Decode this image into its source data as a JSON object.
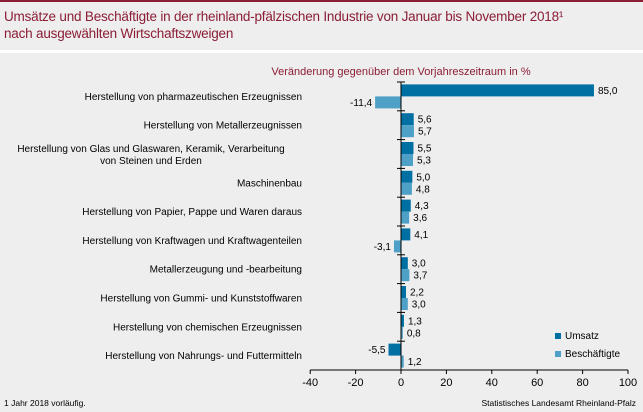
{
  "header": {
    "title_line1": "Umsätze und Beschäftigte in der rheinland-pfälzischen Industrie von Januar bis November 2018¹",
    "title_line2": "nach ausgewählten Wirtschaftszweigen"
  },
  "footer": {
    "note": "1 Jahr 2018 vorläufig.",
    "source": "Statistisches Landesamt Rheinland-Pfalz"
  },
  "colors": {
    "brand": "#8b1d36",
    "umsatz": "#0070a3",
    "beschaeftigte": "#4ea0c6",
    "background": "#eeeeee"
  },
  "chart_data": {
    "type": "bar",
    "orientation": "horizontal",
    "title": "Veränderung gegenüber dem Vorjahreszeitraum in %",
    "categories": [
      [
        "Herstellung von pharmazeutischen Erzeugnissen"
      ],
      [
        "Herstellung von Metallerzeugnissen"
      ],
      [
        "Herstellung von Glas und Glaswaren, Keramik, Verarbeitung",
        "von Steinen und Erden"
      ],
      [
        "Maschinenbau"
      ],
      [
        "Herstellung von Papier, Pappe und Waren daraus"
      ],
      [
        "Herstellung von Kraftwagen und Kraftwagenteilen"
      ],
      [
        "Metallerzeugung und -bearbeitung"
      ],
      [
        "Herstellung von Gummi- und Kunststoffwaren"
      ],
      [
        "Herstellung von chemischen Erzeugnissen"
      ],
      [
        "Herstellung von Nahrungs- und Futtermitteln"
      ]
    ],
    "series": [
      {
        "name": "Umsatz",
        "values": [
          85.0,
          5.6,
          5.5,
          5.0,
          4.3,
          4.1,
          3.0,
          2.2,
          1.3,
          -5.5
        ],
        "labels": [
          "85,0",
          "5,6",
          "5,5",
          "5,0",
          "4,3",
          "4,1",
          "3,0",
          "2,2",
          "1,3",
          "-5,5"
        ]
      },
      {
        "name": "Beschäftigte",
        "values": [
          -11.4,
          5.7,
          5.3,
          4.8,
          3.6,
          -3.1,
          3.7,
          3.0,
          0.8,
          1.2
        ],
        "labels": [
          "-11,4",
          "5,7",
          "5,3",
          "4,8",
          "3,6",
          "-3,1",
          "3,7",
          "3,0",
          "0,8",
          "1,2"
        ]
      }
    ],
    "xlim": [
      -40,
      100
    ],
    "xticks": [
      -40,
      -20,
      0,
      20,
      40,
      60,
      80,
      100
    ],
    "xtick_labels": [
      "-40",
      "-20",
      "0",
      "20",
      "40",
      "60",
      "80",
      "100"
    ],
    "xlabel": "",
    "ylabel": "",
    "grid": false,
    "legend_position": "bottom-right"
  }
}
